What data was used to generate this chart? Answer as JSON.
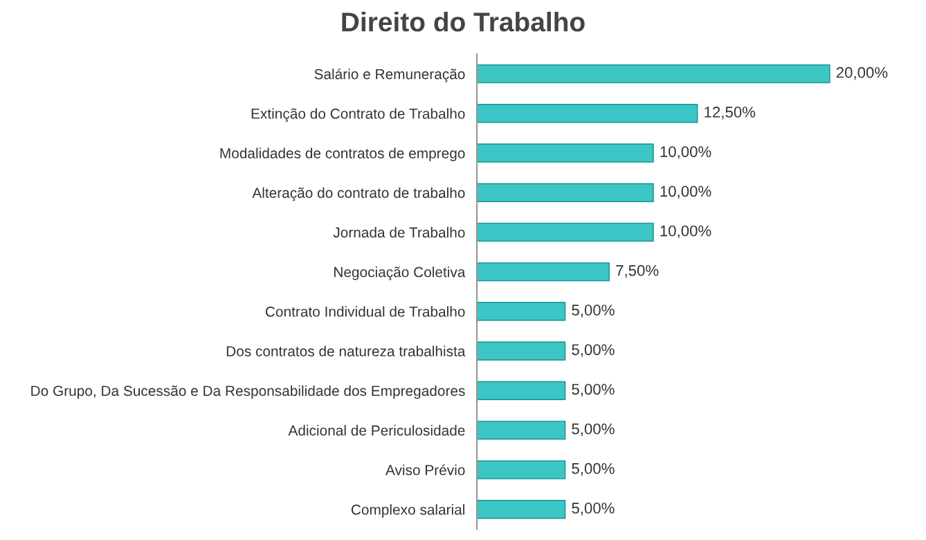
{
  "chart_data": {
    "type": "bar",
    "orientation": "horizontal",
    "title": "Direito do Trabalho",
    "categories": [
      "Salário e Remuneração",
      "Extinção do Contrato de Trabalho",
      "Modalidades de contratos de emprego",
      "Alteração do contrato de trabalho",
      "Jornada de Trabalho",
      "Negociação Coletiva",
      "Contrato Individual de Trabalho",
      "Dos contratos de natureza trabalhista",
      "Do Grupo, Da Sucessão e Da Responsabilidade dos Empregadores",
      "Adicional de Periculosidade",
      "Aviso Prévio",
      "Complexo salarial"
    ],
    "values": [
      20,
      12.5,
      10,
      10,
      10,
      7.5,
      5,
      5,
      5,
      5,
      5,
      5
    ],
    "value_labels": [
      "20,00%",
      "12,50%",
      "10,00%",
      "10,00%",
      "10,00%",
      "7,50%",
      "5,00%",
      "5,00%",
      "5,00%",
      "5,00%",
      "5,00%",
      "5,00%"
    ],
    "color": "#3cc6c6",
    "grid": false,
    "legend": false,
    "tick_labels": "y"
  }
}
